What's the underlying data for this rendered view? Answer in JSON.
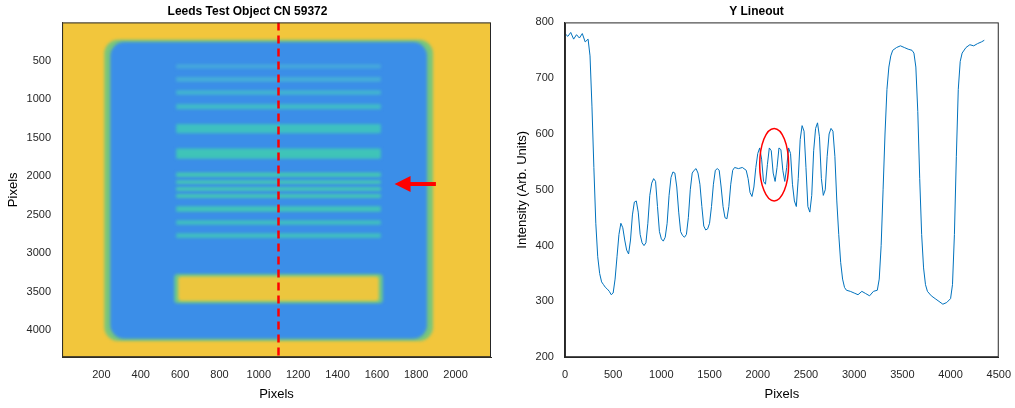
{
  "chart_data": [
    {
      "type": "image",
      "title": "Leeds Test Object CN 59372",
      "x_label": "Pixels",
      "y_label": "Pixels",
      "xlim": [
        0,
        2180
      ],
      "ylim": [
        0,
        4350
      ],
      "xticks": [
        200,
        400,
        600,
        800,
        1000,
        1200,
        1400,
        1600,
        1800,
        2000
      ],
      "yticks": [
        500,
        1000,
        1500,
        2000,
        2500,
        3000,
        3500,
        4000
      ],
      "grid": false,
      "regions": [
        {
          "x": [
            0,
            2180
          ],
          "y": [
            0,
            4350
          ],
          "color": "#f2c63c"
        },
        {
          "x": [
            215,
            1885
          ],
          "y": [
            225,
            4140
          ],
          "color": "#78c67c"
        },
        {
          "x": [
            245,
            1855
          ],
          "y": [
            255,
            4110
          ],
          "color": "#3b8ee8"
        },
        {
          "x": [
            580,
            1620
          ],
          "y": [
            545,
            600
          ],
          "color": "#45a8dc"
        },
        {
          "x": [
            580,
            1620
          ],
          "y": [
            710,
            770
          ],
          "color": "#45add8"
        },
        {
          "x": [
            580,
            1620
          ],
          "y": [
            880,
            940
          ],
          "color": "#42b4d0"
        },
        {
          "x": [
            580,
            1620
          ],
          "y": [
            1060,
            1130
          ],
          "color": "#40bac8"
        },
        {
          "x": [
            580,
            1620
          ],
          "y": [
            1320,
            1440
          ],
          "color": "#3ec0c0"
        },
        {
          "x": [
            580,
            1620
          ],
          "y": [
            1640,
            1770
          ],
          "color": "#3fc4b8"
        },
        {
          "x": [
            580,
            1620
          ],
          "y": [
            1950,
            2010
          ],
          "color": "#44c6b4"
        },
        {
          "x": [
            580,
            1620
          ],
          "y": [
            2050,
            2100
          ],
          "color": "#44c6b4"
        },
        {
          "x": [
            580,
            1620
          ],
          "y": [
            2140,
            2190
          ],
          "color": "#44c6b4"
        },
        {
          "x": [
            580,
            1620
          ],
          "y": [
            2230,
            2280
          ],
          "color": "#44c6b4"
        },
        {
          "x": [
            580,
            1620
          ],
          "y": [
            2390,
            2460
          ],
          "color": "#42c2b8"
        },
        {
          "x": [
            580,
            1620
          ],
          "y": [
            2570,
            2630
          ],
          "color": "#40bec0"
        },
        {
          "x": [
            580,
            1620
          ],
          "y": [
            2740,
            2800
          ],
          "color": "#40bec0"
        },
        {
          "x": [
            570,
            1630
          ],
          "y": [
            3270,
            3650
          ],
          "color": "#6cc78a"
        },
        {
          "x": [
            590,
            1610
          ],
          "y": [
            3300,
            3620
          ],
          "color": "#ecc63e"
        }
      ],
      "lineout": {
        "x": 1100,
        "color": "#ff0000",
        "line_style": "dashed"
      },
      "arrow": {
        "y": 2100,
        "x": [
          1900,
          1690
        ],
        "color": "#ff0000"
      }
    },
    {
      "type": "line",
      "title": "Y Lineout",
      "x_label": "Pixels",
      "y_label": "Intensity (Arb. Units)",
      "xlim": [
        0,
        4500
      ],
      "ylim": [
        200,
        800
      ],
      "xticks": [
        0,
        500,
        1000,
        1500,
        2000,
        2500,
        3000,
        3500,
        4000,
        4500
      ],
      "yticks": [
        200,
        300,
        400,
        500,
        600,
        700,
        800
      ],
      "grid": false,
      "color": "#0072bd",
      "x": [
        0,
        30,
        60,
        90,
        120,
        150,
        180,
        210,
        240,
        260,
        280,
        300,
        320,
        340,
        360,
        380,
        400,
        420,
        440,
        460,
        480,
        500,
        520,
        540,
        560,
        580,
        600,
        620,
        640,
        660,
        680,
        700,
        720,
        740,
        760,
        780,
        800,
        820,
        840,
        860,
        880,
        900,
        920,
        940,
        960,
        980,
        1000,
        1020,
        1040,
        1060,
        1080,
        1100,
        1120,
        1140,
        1160,
        1180,
        1200,
        1220,
        1240,
        1260,
        1280,
        1300,
        1320,
        1340,
        1360,
        1380,
        1400,
        1420,
        1440,
        1460,
        1480,
        1500,
        1520,
        1540,
        1560,
        1580,
        1600,
        1620,
        1640,
        1660,
        1680,
        1700,
        1720,
        1740,
        1760,
        1800,
        1840,
        1880,
        1900,
        1920,
        1940,
        1960,
        1980,
        2000,
        2020,
        2040,
        2060,
        2080,
        2100,
        2120,
        2140,
        2160,
        2180,
        2200,
        2220,
        2240,
        2260,
        2280,
        2300,
        2320,
        2340,
        2360,
        2380,
        2400,
        2420,
        2440,
        2460,
        2480,
        2500,
        2520,
        2540,
        2560,
        2580,
        2600,
        2620,
        2640,
        2660,
        2680,
        2700,
        2720,
        2740,
        2760,
        2780,
        2800,
        2820,
        2840,
        2860,
        2880,
        2900,
        2920,
        2960,
        3000,
        3040,
        3080,
        3120,
        3160,
        3200,
        3240,
        3260,
        3280,
        3300,
        3320,
        3340,
        3360,
        3380,
        3400,
        3440,
        3480,
        3520,
        3560,
        3600,
        3620,
        3640,
        3660,
        3680,
        3700,
        3720,
        3740,
        3760,
        3800,
        3840,
        3880,
        3920,
        3960,
        4000,
        4020,
        4040,
        4060,
        4080,
        4100,
        4120,
        4160,
        4200,
        4240,
        4280,
        4320,
        4350
      ],
      "values": [
        780,
        775,
        782,
        770,
        778,
        772,
        780,
        765,
        770,
        740,
        650,
        540,
        440,
        380,
        350,
        335,
        330,
        325,
        322,
        318,
        312,
        315,
        340,
        380,
        420,
        440,
        432,
        410,
        392,
        385,
        410,
        455,
        478,
        480,
        460,
        420,
        405,
        400,
        405,
        440,
        490,
        512,
        520,
        515,
        470,
        425,
        412,
        408,
        415,
        440,
        490,
        522,
        532,
        530,
        505,
        460,
        425,
        418,
        415,
        420,
        450,
        500,
        530,
        535,
        538,
        530,
        510,
        470,
        435,
        428,
        430,
        440,
        470,
        510,
        535,
        538,
        535,
        505,
        470,
        450,
        448,
        470,
        510,
        535,
        540,
        538,
        540,
        535,
        520,
        495,
        488,
        505,
        540,
        565,
        575,
        555,
        515,
        510,
        545,
        575,
        570,
        530,
        515,
        540,
        575,
        572,
        535,
        515,
        540,
        575,
        565,
        510,
        480,
        470,
        520,
        590,
        615,
        605,
        540,
        470,
        460,
        490,
        570,
        610,
        620,
        595,
        520,
        490,
        500,
        560,
        600,
        610,
        605,
        560,
        480,
        420,
        370,
        340,
        325,
        320,
        318,
        315,
        312,
        318,
        314,
        310,
        318,
        320,
        340,
        400,
        500,
        600,
        680,
        720,
        740,
        750,
        755,
        758,
        755,
        752,
        750,
        745,
        720,
        640,
        520,
        420,
        360,
        330,
        318,
        310,
        305,
        300,
        295,
        298,
        305,
        330,
        420,
        560,
        680,
        730,
        745,
        755,
        760,
        758,
        762,
        765,
        768
      ],
      "highlight": {
        "x": 2170,
        "y": 545,
        "rx": 150,
        "ry": 65,
        "color": "#ff0000"
      }
    }
  ]
}
